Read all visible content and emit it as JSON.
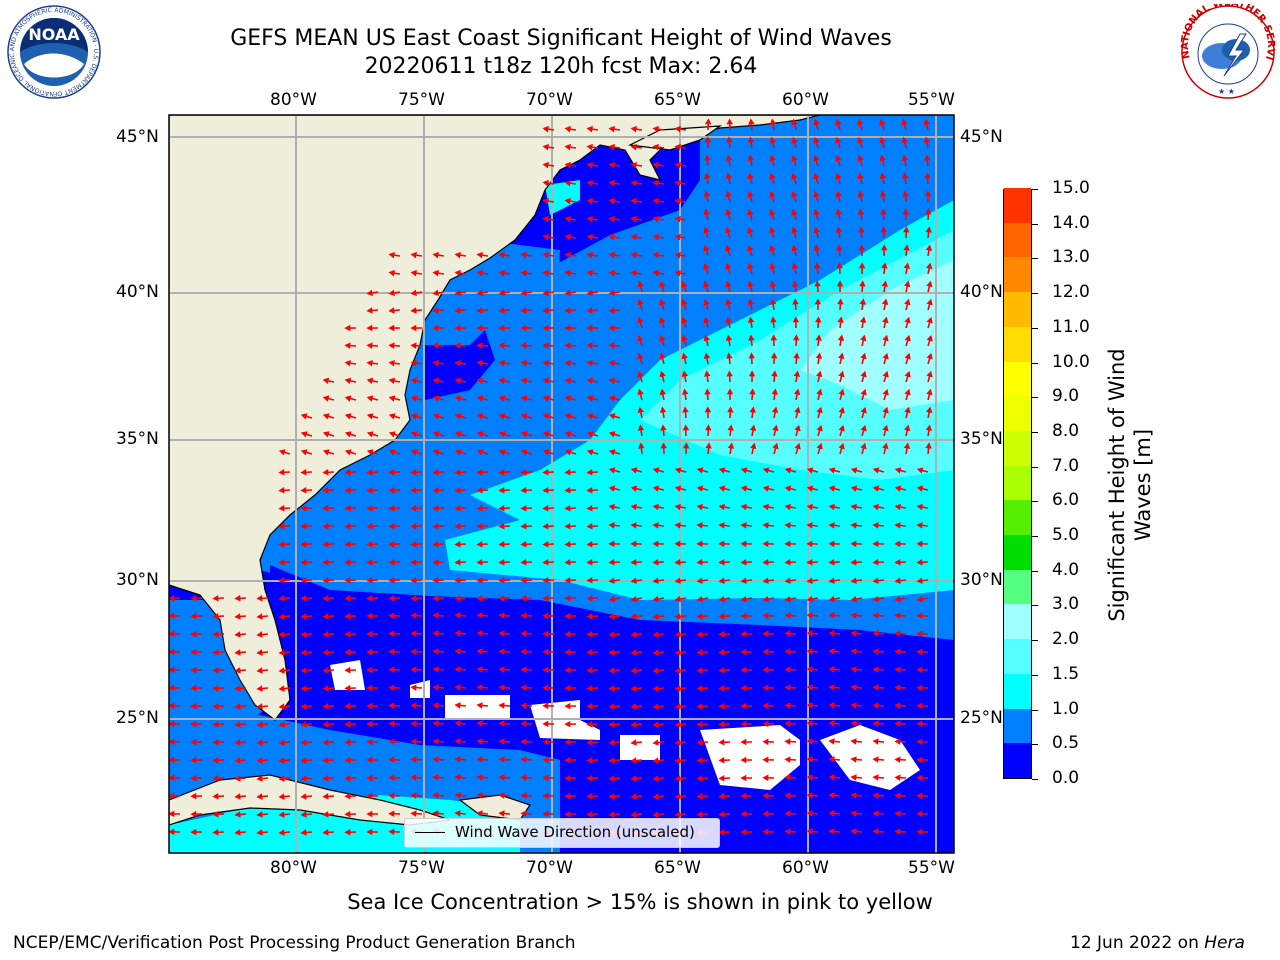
{
  "header": {
    "title_line1": "GEFS MEAN US East Coast Significant Height of Wind Waves",
    "title_line2": "20220611 t18z 120h fcst   Max: 2.64"
  },
  "map": {
    "lon_labels": [
      "80°W",
      "75°W",
      "70°W",
      "65°W",
      "60°W",
      "55°W"
    ],
    "lat_labels": [
      "45°N",
      "40°N",
      "35°N",
      "30°N",
      "25°N"
    ],
    "legend_label": "Wind Wave Direction (unscaled)",
    "colors": {
      "land": "#efeedb",
      "below_0_5": "#0000fe",
      "range_0_5_1": "#0080ff",
      "range_1_1_5": "#00ffff",
      "range_1_5_2": "#55ffff",
      "range_2_3": "#a0ffff",
      "arrows": "#ff0000",
      "grid": "#b0b0b0"
    }
  },
  "colorbar": {
    "title": "Significant Height of Wind Waves [m]",
    "title_line1": "Significant Height of Wind",
    "title_line2": "Waves [m]",
    "labels": [
      "0.0",
      "0.5",
      "1.0",
      "1.5",
      "2.0",
      "3.0",
      "4.0",
      "5.0",
      "6.0",
      "7.0",
      "8.0",
      "9.0",
      "10.0",
      "11.0",
      "12.0",
      "13.0",
      "14.0",
      "15.0"
    ],
    "colors": [
      "#0000fe",
      "#0080ff",
      "#00ffff",
      "#55ffff",
      "#a0ffff",
      "#55ff80",
      "#00dd00",
      "#55ee00",
      "#aaff00",
      "#ccff00",
      "#eeff00",
      "#ffff00",
      "#ffdd00",
      "#ffbb00",
      "#ff8800",
      "#ff6600",
      "#ff3300",
      "#ff0000"
    ]
  },
  "footer": {
    "sea_ice_note": "Sea Ice Concentration > 15% is shown in pink to yellow",
    "branch": "NCEP/EMC/Verification Post Processing Product Generation Branch",
    "date": "12 Jun 2022 on ",
    "machine": "Hera"
  },
  "logos": {
    "noaa": "NOAA",
    "noaa_ring": "NATIONAL OCEANIC AND ATMOSPHERIC ADMINISTRATION · U.S. DEPARTMENT OF COMMERCE",
    "nws_ring": "NATIONAL WEATHER SERVICE"
  }
}
